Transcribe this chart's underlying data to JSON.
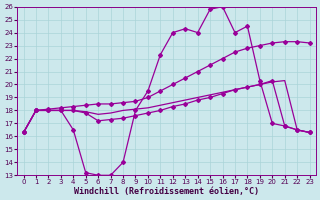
{
  "xlabel": "Windchill (Refroidissement éolien,°C)",
  "background_color": "#cce8ec",
  "grid_color": "#aad4d8",
  "line_color": "#990099",
  "xlim": [
    0,
    23
  ],
  "ylim": [
    13,
    26
  ],
  "xticks": [
    0,
    1,
    2,
    3,
    4,
    5,
    6,
    7,
    8,
    9,
    10,
    11,
    12,
    13,
    14,
    15,
    16,
    17,
    18,
    19,
    20,
    21,
    22,
    23
  ],
  "yticks": [
    13,
    14,
    15,
    16,
    17,
    18,
    19,
    20,
    21,
    22,
    23,
    24,
    25,
    26
  ],
  "line1_x": [
    0,
    1,
    2,
    3,
    4,
    5,
    6,
    7,
    8,
    9,
    10,
    11,
    12,
    13,
    14,
    15,
    16,
    17,
    18,
    19,
    20,
    21,
    22,
    23
  ],
  "line1_y": [
    16.3,
    18.0,
    18.1,
    18.2,
    18.3,
    18.4,
    18.5,
    18.5,
    18.6,
    18.7,
    19.0,
    19.5,
    20.0,
    20.5,
    21.0,
    21.5,
    22.0,
    22.5,
    22.8,
    23.0,
    23.2,
    23.3,
    23.3,
    23.2
  ],
  "line2_x": [
    0,
    1,
    2,
    3,
    4,
    5,
    6,
    7,
    8,
    9,
    10,
    11,
    12,
    13,
    14,
    15,
    16,
    17,
    18,
    19,
    20,
    21,
    22,
    23
  ],
  "line2_y": [
    16.3,
    18.0,
    18.0,
    18.0,
    16.5,
    13.2,
    13.0,
    13.0,
    14.0,
    18.0,
    19.5,
    22.3,
    24.0,
    24.3,
    24.0,
    25.8,
    26.0,
    24.0,
    24.5,
    20.3,
    17.0,
    16.8,
    16.5,
    16.3
  ],
  "line3_x": [
    0,
    1,
    2,
    3,
    4,
    5,
    6,
    7,
    8,
    9,
    10,
    11,
    12,
    13,
    14,
    15,
    16,
    17,
    18,
    19,
    20,
    21,
    22,
    23
  ],
  "line3_y": [
    16.3,
    18.0,
    18.0,
    18.0,
    18.0,
    17.8,
    17.2,
    17.3,
    17.4,
    17.6,
    17.8,
    18.0,
    18.3,
    18.5,
    18.8,
    19.0,
    19.3,
    19.6,
    19.8,
    20.0,
    20.3,
    16.8,
    16.5,
    16.3
  ],
  "line4_x": [
    0,
    1,
    2,
    3,
    4,
    5,
    6,
    7,
    8,
    9,
    10,
    11,
    12,
    13,
    14,
    15,
    16,
    17,
    18,
    19,
    20,
    21,
    22,
    23
  ],
  "line4_y": [
    16.3,
    18.0,
    18.0,
    18.0,
    18.0,
    17.9,
    17.7,
    17.8,
    18.0,
    18.1,
    18.2,
    18.4,
    18.6,
    18.8,
    19.0,
    19.2,
    19.4,
    19.6,
    19.8,
    20.0,
    20.2,
    20.3,
    16.5,
    16.3
  ],
  "marker": "D",
  "markersize": 2.0,
  "linewidth": 0.9,
  "tick_fontsize": 5.0,
  "label_fontsize": 6.0
}
